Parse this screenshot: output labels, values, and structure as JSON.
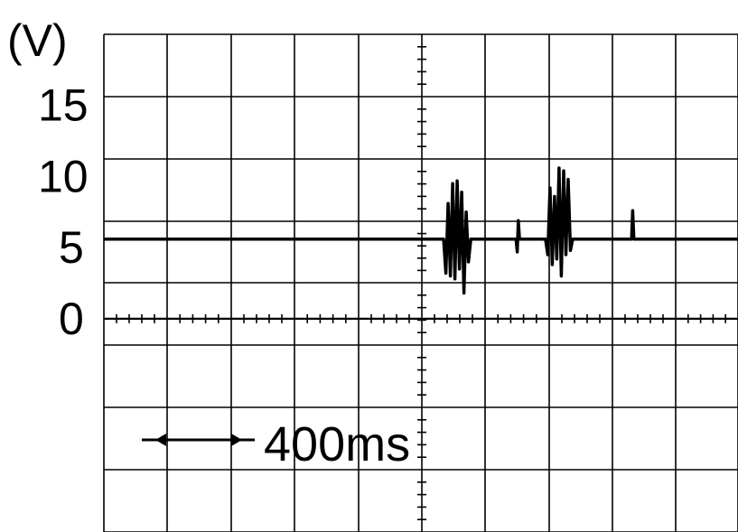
{
  "chart_data": {
    "type": "line",
    "title": "",
    "xlabel": "",
    "ylabel": "(V)",
    "y_ticks": [
      "15",
      "10",
      "5",
      "0"
    ],
    "y_tick_values": [
      15,
      10,
      5,
      0
    ],
    "ylim": [
      -15,
      20
    ],
    "xlim": [
      0,
      2800
    ],
    "x_units": "ms",
    "grid": true,
    "time_scale": {
      "label": "400ms",
      "value_ms": 400
    },
    "series": [
      {
        "values": [
          [
            0,
            5.6
          ],
          [
            1500,
            5.6
          ],
          [
            1510,
            3.2
          ],
          [
            1520,
            8.1
          ],
          [
            1530,
            3.0
          ],
          [
            1540,
            9.5
          ],
          [
            1550,
            2.8
          ],
          [
            1560,
            9.7
          ],
          [
            1570,
            3.5
          ],
          [
            1580,
            8.9
          ],
          [
            1590,
            1.8
          ],
          [
            1600,
            7.5
          ],
          [
            1610,
            4.0
          ],
          [
            1620,
            5.6
          ],
          [
            1820,
            5.6
          ],
          [
            1825,
            4.7
          ],
          [
            1830,
            6.9
          ],
          [
            1835,
            5.6
          ],
          [
            1950,
            5.6
          ],
          [
            1960,
            4.5
          ],
          [
            1970,
            9.2
          ],
          [
            1980,
            3.8
          ],
          [
            1990,
            8.6
          ],
          [
            2000,
            4.2
          ],
          [
            2010,
            10.6
          ],
          [
            2020,
            3.0
          ],
          [
            2030,
            10.4
          ],
          [
            2040,
            4.5
          ],
          [
            2050,
            9.8
          ],
          [
            2060,
            4.8
          ],
          [
            2070,
            5.6
          ],
          [
            2330,
            5.6
          ],
          [
            2335,
            7.6
          ],
          [
            2340,
            5.6
          ],
          [
            2800,
            5.6
          ]
        ]
      }
    ]
  }
}
